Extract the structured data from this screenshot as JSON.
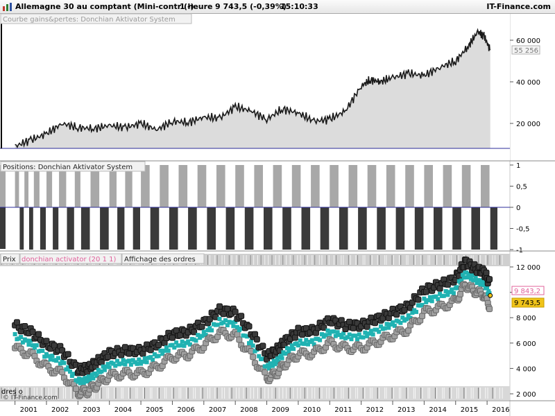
{
  "header": {
    "instrument": "Allemagne 30 au comptant (Mini-contr (-)",
    "timeframe": "1 heure",
    "price": "9 743,5 (-0,39%)",
    "time": "15:10:33",
    "brand": "IT-Finance.com"
  },
  "panels": {
    "equity_title": "Courbe gains&pertes: Donchian Aktivator System",
    "equity_last_tag": "55 256",
    "positions_title": "Positions: Donchian Aktivator System",
    "price_title": "Prix",
    "price_indicator": "donchian activator (20 1 1)",
    "price_orders": "Affichage des ordres",
    "price_tag_indicator": "9 843,2",
    "price_tag_last": "9 743,5",
    "bottom_label": "dres o",
    "copyright": "© IT-Finance.com"
  },
  "colors": {
    "background": "#ffffff",
    "equity_line": "#1a1a1a",
    "equity_fill": "#d8d8d8",
    "zero_line": "#2b2b99",
    "long_bars": "#a8a8a8",
    "short_bars": "#3a3a3a",
    "channel_accent": "#20b2b2",
    "indicator_label": "#e0609a",
    "last_price_tag": "#f0c419"
  },
  "chart_data": [
    {
      "type": "area",
      "title": "Courbe gains&pertes: Donchian Aktivator System",
      "x": [
        2001.0,
        2001.5,
        2002.0,
        2002.5,
        2003.0,
        2003.5,
        2004.0,
        2004.5,
        2005.0,
        2005.5,
        2006.0,
        2006.5,
        2007.0,
        2007.5,
        2008.0,
        2008.5,
        2009.0,
        2009.5,
        2010.0,
        2010.5,
        2011.0,
        2011.5,
        2012.0,
        2012.3,
        2012.6,
        2013.0,
        2013.5,
        2014.0,
        2014.5,
        2015.0,
        2015.4,
        2015.7,
        2015.9,
        2016.1
      ],
      "values": [
        9000,
        12000,
        15000,
        20000,
        18000,
        17500,
        19000,
        18000,
        20000,
        17000,
        21000,
        20500,
        23000,
        22500,
        28000,
        26000,
        22000,
        27000,
        25000,
        21000,
        22000,
        26000,
        38000,
        41000,
        40000,
        42000,
        44000,
        43000,
        47000,
        50000,
        57000,
        64000,
        62000,
        55256
      ],
      "ylim": [
        8000,
        72000
      ],
      "yticks": [
        20000,
        40000,
        60000
      ],
      "ytick_labels": [
        "20 000",
        "40 000",
        "60 000"
      ],
      "last_value_label": "55 256"
    },
    {
      "type": "bar",
      "title": "Positions: Donchian Aktivator System",
      "ylim": [
        -1,
        1
      ],
      "yticks": [
        1,
        0.5,
        0,
        -0.5,
        -1
      ],
      "ytick_labels": [
        "1",
        "0,5",
        "0",
        "-0,5",
        "-1"
      ],
      "x": [
        2001.0,
        2001.15,
        2001.3,
        2001.45,
        2001.6,
        2001.8,
        2002.0,
        2002.2,
        2002.4,
        2002.65,
        2002.9,
        2003.1,
        2003.4,
        2003.7,
        2004.0,
        2004.25,
        2004.5,
        2004.75,
        2005.0,
        2005.3,
        2005.6,
        2005.9,
        2006.2,
        2006.5,
        2006.8,
        2007.1,
        2007.4,
        2007.7,
        2008.0,
        2008.3,
        2008.6,
        2008.9,
        2009.2,
        2009.5,
        2009.8,
        2010.1,
        2010.4,
        2010.7,
        2011.0,
        2011.3,
        2011.6,
        2011.9,
        2012.2,
        2012.5,
        2012.8,
        2013.1,
        2013.4,
        2013.7,
        2014.0,
        2014.3,
        2014.6,
        2014.9,
        2015.2,
        2015.5,
        2015.8,
        2016.1
      ],
      "values": [
        1,
        -1,
        1,
        -1,
        1,
        -1,
        1,
        -1,
        1,
        -1,
        1,
        -1,
        1,
        -1,
        1,
        -1,
        1,
        -1,
        1,
        -1,
        1,
        -1,
        1,
        -1,
        1,
        -1,
        1,
        -1,
        1,
        -1,
        1,
        -1,
        1,
        -1,
        1,
        -1,
        1,
        -1,
        1,
        -1,
        1,
        -1,
        1,
        -1,
        1,
        -1,
        1,
        -1,
        1,
        -1,
        1,
        -1,
        1,
        -1,
        1,
        -1
      ]
    },
    {
      "type": "scatter",
      "title": "Prix",
      "series_label": "donchian activator (20 1 1)",
      "x": [
        2001.0,
        2001.5,
        2002.0,
        2002.5,
        2003.0,
        2003.3,
        2003.6,
        2004.0,
        2004.5,
        2005.0,
        2005.5,
        2006.0,
        2006.5,
        2007.0,
        2007.5,
        2008.0,
        2008.5,
        2009.0,
        2009.3,
        2009.6,
        2010.0,
        2010.5,
        2011.0,
        2011.5,
        2012.0,
        2012.5,
        2013.0,
        2013.5,
        2014.0,
        2014.5,
        2015.0,
        2015.3,
        2015.6,
        2015.9,
        2016.1
      ],
      "values": [
        6500,
        6000,
        5000,
        4500,
        3000,
        3100,
        3600,
        4300,
        4500,
        4500,
        5000,
        5800,
        6000,
        6700,
        7700,
        7500,
        6000,
        4100,
        4500,
        5300,
        6000,
        6100,
        6900,
        6500,
        6500,
        7000,
        7500,
        8000,
        9300,
        9700,
        10200,
        11500,
        11000,
        10700,
        9743.5
      ],
      "ylim": [
        2000,
        12000
      ],
      "yticks": [
        2000,
        4000,
        6000,
        8000,
        10000,
        12000
      ],
      "ytick_labels": [
        "2 000",
        "4 000",
        "6 000",
        "8 000",
        "10 000",
        "12 000"
      ],
      "xticks": [
        2001,
        2002,
        2003,
        2004,
        2005,
        2006,
        2007,
        2008,
        2009,
        2010,
        2011,
        2012,
        2013,
        2014,
        2015,
        2016
      ],
      "xtick_labels": [
        "2001",
        "2002",
        "2003",
        "2004",
        "2005",
        "2006",
        "2007",
        "2008",
        "2009",
        "2010",
        "2011",
        "2012",
        "2013",
        "2014",
        "2015",
        "2016"
      ],
      "last_value_label": "9 743,5",
      "indicator_value_label": "9 843,2"
    }
  ]
}
